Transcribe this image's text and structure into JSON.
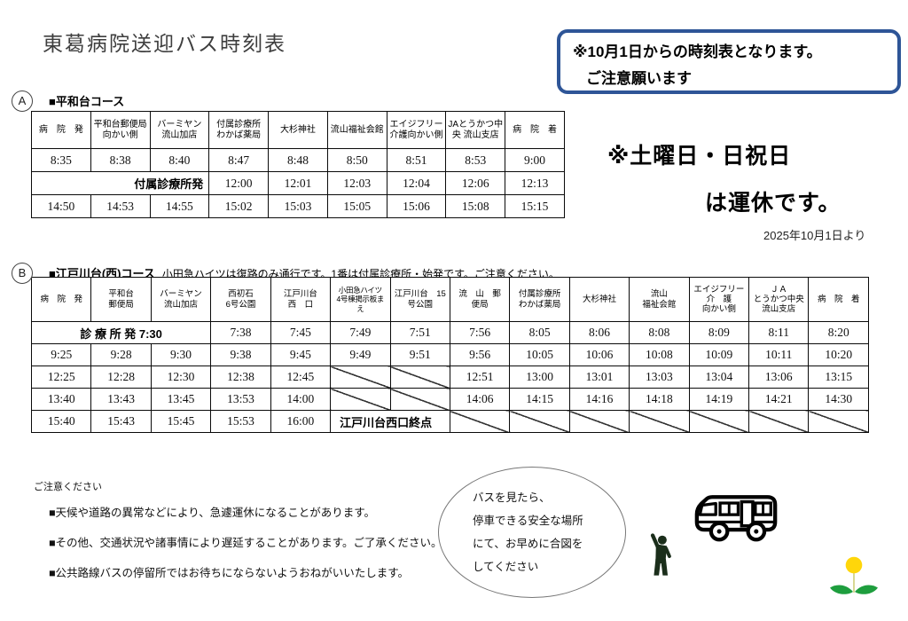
{
  "page": {
    "title": "東葛病院送迎バス時刻表"
  },
  "notice_box": {
    "line1": "※10月1日からの時刻表となります。",
    "line2": "ご注意願います",
    "border_color": "#2e5597"
  },
  "weekend_notice": {
    "line1": "※土曜日・日祝日",
    "line2": "は運休です。"
  },
  "effective_date": "2025年10月1日より",
  "section_a": {
    "badge": "A",
    "heading": "■平和台コース",
    "table": {
      "headers": [
        {
          "lines": [
            "病　院　発"
          ]
        },
        {
          "lines": [
            "平和台郵便局",
            "向かい側"
          ]
        },
        {
          "lines": [
            "バーミヤン",
            "流山加店"
          ]
        },
        {
          "lines": [
            "付属診療所",
            "わかば薬局"
          ]
        },
        {
          "lines": [
            "大杉神社"
          ]
        },
        {
          "lines": [
            "流山福祉会館"
          ]
        },
        {
          "lines": [
            "エイジフリー",
            "介護向かい側"
          ]
        },
        {
          "lines": [
            "JAとうかつ中",
            "央 流山支店"
          ]
        },
        {
          "lines": [
            "病　院　着"
          ]
        }
      ],
      "rows": [
        [
          "8:35",
          "8:38",
          "8:40",
          "8:47",
          "8:48",
          "8:50",
          "8:51",
          "8:53",
          "9:00"
        ],
        [
          {
            "t": "付属診療所発",
            "span": 3,
            "bold": true,
            "align": "right"
          },
          "12:00",
          "12:01",
          "12:03",
          "12:04",
          "12:06",
          "12:13"
        ],
        [
          "14:50",
          "14:53",
          "14:55",
          "15:02",
          "15:03",
          "15:05",
          "15:06",
          "15:08",
          "15:15"
        ]
      ]
    }
  },
  "section_b": {
    "badge": "B",
    "heading": "■江戸川台(西)コース",
    "note": "小田急ハイツは復路のみ通行です。1番は付属診療所・始発です。ご注意ください。",
    "table": {
      "headers": [
        {
          "lines": [
            "病　院　発"
          ]
        },
        {
          "lines": [
            "平和台",
            "郵便局"
          ]
        },
        {
          "lines": [
            "バーミヤン",
            "流山加店"
          ]
        },
        {
          "lines": [
            "西初石",
            "6号公園"
          ]
        },
        {
          "lines": [
            "江戸川台",
            "西　口"
          ]
        },
        {
          "lines": [
            "小田急ハイツ",
            "4号棟掲示板ま",
            "え"
          ],
          "small": true
        },
        {
          "lines": [
            "江戸川台　15",
            "号公園"
          ]
        },
        {
          "lines": [
            "流　山　郵",
            "便局"
          ]
        },
        {
          "lines": [
            "付属診療所",
            "わかば薬局"
          ]
        },
        {
          "lines": [
            "大杉神社"
          ]
        },
        {
          "lines": [
            "流山",
            "福祉会館"
          ]
        },
        {
          "lines": [
            "エイジフリー",
            "介　護",
            "向かい側"
          ]
        },
        {
          "lines": [
            "ＪＡ",
            "とうかつ中央",
            "流山支店"
          ]
        },
        {
          "lines": [
            "病　院　着"
          ]
        }
      ],
      "rows": [
        [
          {
            "t": "診 療 所 発 7:30",
            "span": 3,
            "bold": true
          },
          "7:38",
          "7:45",
          "7:49",
          "7:51",
          "7:56",
          "8:05",
          "8:06",
          "8:08",
          "8:09",
          "8:11",
          "8:20"
        ],
        [
          "9:25",
          "9:28",
          "9:30",
          "9:38",
          "9:45",
          "9:49",
          "9:51",
          "9:56",
          "10:05",
          "10:06",
          "10:08",
          "10:09",
          "10:11",
          "10:20"
        ],
        [
          "12:25",
          "12:28",
          "12:30",
          "12:38",
          "12:45",
          {
            "diag": true
          },
          {
            "diag": true
          },
          "12:51",
          "13:00",
          "13:01",
          "13:03",
          "13:04",
          "13:06",
          "13:15"
        ],
        [
          "13:40",
          "13:43",
          "13:45",
          "13:53",
          "14:00",
          {
            "diag": true
          },
          {
            "diag": true
          },
          "14:06",
          "14:15",
          "14:16",
          "14:18",
          "14:19",
          "14:21",
          "14:30"
        ],
        [
          "15:40",
          "15:43",
          "15:45",
          "15:53",
          "16:00",
          {
            "t": "江戸川台西口終点",
            "span": 2,
            "bold": true,
            "align": "left"
          },
          {
            "diag": true
          },
          {
            "diag": true
          },
          {
            "diag": true
          },
          {
            "diag": true
          },
          {
            "diag": true
          },
          {
            "diag": true
          },
          {
            "diag": true
          }
        ]
      ]
    }
  },
  "cautions": {
    "heading": "ご注意ください",
    "items": [
      "■天候や道路の異常などにより、急遽運休になることがあります。",
      "■その他、交通状況や諸事情により遅延することがあります。ご了承ください。",
      "■公共路線バスの停留所ではお待ちにならないようおねがいいたします。"
    ]
  },
  "bubble": {
    "lines": [
      "バスを見たら、",
      "停車できる安全な場所",
      "にて、お早めに合図を",
      "してください"
    ]
  },
  "icons": {
    "bus": "bus-side-outline",
    "person": "person-hailing-pictogram",
    "flower": "dandelion-flower",
    "person_color": "#1b2e1b",
    "flower_yellow": "#ffd60a",
    "flower_green": "#1e9e3e"
  }
}
